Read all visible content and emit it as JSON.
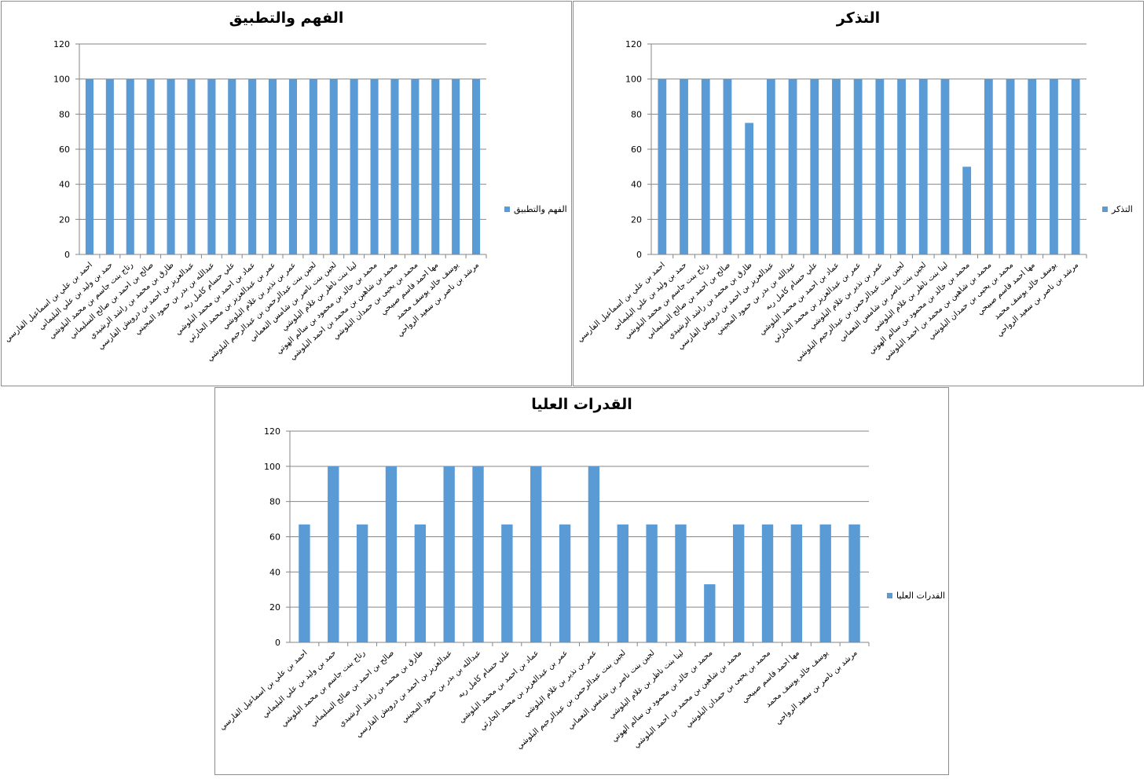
{
  "chart_data": [
    {
      "type": "bar",
      "title": "الفهم والتطبيق",
      "legend": "الفهم والتطبيق",
      "legend_position": "right",
      "ylim": [
        0,
        120
      ],
      "yticks": [
        0,
        20,
        40,
        60,
        80,
        100,
        120
      ],
      "grid": true,
      "categories": [
        "احمد بن علي بن اسماعيل الفارسي",
        "حمد بن وليد بن علي  البليماني",
        "رتاج بنت جاسم بن محمد البلوشي",
        "صالح بن احمد بن صالح  السليماني",
        "طارق بن محمد بن راشد الرشيدي",
        "عبدالعزيز بن احمد بن درويش الفارسي",
        "عبدالله  بن بدر بن حمود المجيني",
        "علي حسام كامل ربه",
        "عماد بن احمد بن محمد البلوشي",
        "عمر بن عبدالعزيز بن محمد الحارثي",
        "عمر بن  نذير بن غلام البلوشي",
        "لجين بنت عبدالرحمن بن عبدالرحيم البلوشي",
        "لجين بنت ناصر بن شامس النعماني",
        "لينا بنت ناظر بن غلام البلوشي",
        "محمد بن خالد بن محمود بن سالم الهوتي",
        "محمد بن شاهين بن محمد بن احمد  البلوشي",
        "محمد بن يحيى بن حمدان البلوشي",
        "مها احمد قاسم صبيحي",
        "يوسف خالد يوسف محمد",
        "مرشد بن ناصر بن سعيد الرواحي"
      ],
      "values": [
        100,
        100,
        100,
        100,
        100,
        100,
        100,
        100,
        100,
        100,
        100,
        100,
        100,
        100,
        100,
        100,
        100,
        100,
        100,
        100
      ]
    },
    {
      "type": "bar",
      "title": "التذكر",
      "legend": "التذكر",
      "legend_position": "right",
      "ylim": [
        0,
        120
      ],
      "yticks": [
        0,
        20,
        40,
        60,
        80,
        100,
        120
      ],
      "grid": true,
      "categories": [
        "احمد بن علي بن اسماعيل الفارسي",
        "حمد بن وليد بن علي  البليماني",
        "رتاج بنت جاسم بن محمد البلوشي",
        "صالح بن احمد بن صالح  السليماني",
        "طارق بن محمد بن راشد الرشيدي",
        "عبدالعزيز بن احمد بن درويش الفارسي",
        "عبدالله  بن بدر بن حمود المجيني",
        "علي حسام كامل ربه",
        "عماد بن احمد بن محمد البلوشي",
        "عمر بن عبدالعزيز بن محمد الحارثي",
        "عمر بن  نذير بن غلام البلوشي",
        "لجين بنت عبدالرحمن بن عبدالرحيم البلوشي",
        "لجين بنت ناصر بن شامس النعماني",
        "لينا بنت ناظر بن غلام البلوشي",
        "محمد بن خالد بن محمود بن سالم الهوتي",
        "محمد بن شاهين بن محمد بن احمد  البلوشي",
        "محمد بن يحيى بن حمدان البلوشي",
        "مها احمد قاسم صبيحي",
        "يوسف خالد يوسف محمد",
        "مرشد بن ناصر بن سعيد الرواحي"
      ],
      "values": [
        100,
        100,
        100,
        100,
        75,
        100,
        100,
        100,
        100,
        100,
        100,
        100,
        100,
        100,
        50,
        100,
        100,
        100,
        100,
        100
      ]
    },
    {
      "type": "bar",
      "title": "القدرات العليا",
      "legend": "القدرات العليا",
      "legend_position": "right",
      "ylim": [
        0,
        120
      ],
      "yticks": [
        0,
        20,
        40,
        60,
        80,
        100,
        120
      ],
      "grid": true,
      "categories": [
        "احمد بن علي بن اسماعيل الفارسي",
        "حمد بن وليد بن علي  البليماني",
        "رتاج بنت جاسم بن محمد البلوشي",
        "صالح بن احمد بن صالح  السليماني",
        "طارق بن محمد بن راشد الرشيدي",
        "عبدالعزيز بن احمد بن درويش الفارسي",
        "عبدالله  بن بدر بن حمود المجيني",
        "علي حسام كامل ربه",
        "عماد بن احمد بن محمد البلوشي",
        "عمر بن عبدالعزيز بن محمد الحارثي",
        "عمر بن  نذير بن غلام البلوشي",
        "لجين بنت عبدالرحمن بن عبدالرحيم البلوشي",
        "لجين بنت ناصر بن شامس النعماني",
        "لينا بنت ناظر بن غلام البلوشي",
        "محمد بن خالد بن محمود بن سالم الهوتي",
        "محمد بن شاهين بن محمد بن احمد  البلوشي",
        "محمد بن يحيى بن حمدان البلوشي",
        "مها احمد قاسم صبيحي",
        "يوسف خالد يوسف محمد",
        "مرشد بن ناصر بن سعيد الرواحي"
      ],
      "values": [
        67,
        100,
        67,
        100,
        67,
        100,
        100,
        67,
        100,
        67,
        100,
        67,
        67,
        67,
        33,
        67,
        67,
        67,
        67,
        67
      ]
    }
  ],
  "colors": {
    "bar": "#5b9bd5",
    "grid": "#868686",
    "axis": "#868686"
  }
}
